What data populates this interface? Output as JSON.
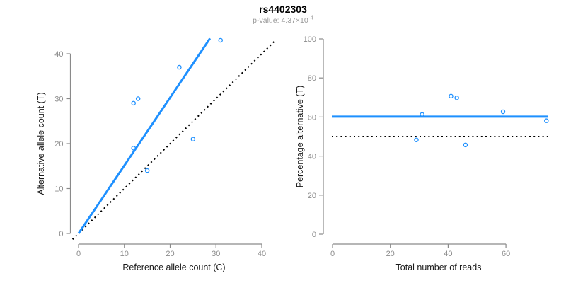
{
  "header": {
    "title": "rs4402303",
    "pvalue_prefix": "p-value: 4.37×10",
    "pvalue_exponent": "-4"
  },
  "colors": {
    "accent_blue": "#1E90FF",
    "axis_gray": "#8A8A8A",
    "tick_text_gray": "#8C8C8C",
    "axis_title_color": "#1A1A1A",
    "reference_black": "#000000",
    "subtitle_gray": "#999999"
  },
  "chart_data": [
    {
      "type": "scatter",
      "panel": "left",
      "xlabel": "Reference allele count (C)",
      "ylabel": "Alternative allele count (T)",
      "xlim": [
        0,
        40
      ],
      "ylim": [
        0,
        40
      ],
      "grid": false,
      "legend": "none",
      "xticks": [
        0,
        10,
        20,
        30,
        40
      ],
      "yticks": [
        0,
        10,
        20,
        30,
        40
      ],
      "points": [
        {
          "x": 12,
          "y": 29
        },
        {
          "x": 13,
          "y": 30
        },
        {
          "x": 12,
          "y": 19
        },
        {
          "x": 15,
          "y": 14
        },
        {
          "x": 22,
          "y": 37
        },
        {
          "x": 25,
          "y": 21
        },
        {
          "x": 31,
          "y": 43
        }
      ],
      "fit_line": {
        "style": "solid",
        "color_key": "accent_blue",
        "slope": 1.513,
        "intercept": 0
      },
      "reference_line": {
        "style": "dotted",
        "color_key": "reference_black",
        "slope": 1,
        "intercept": 0
      }
    },
    {
      "type": "scatter",
      "panel": "right",
      "xlabel": "Total number of reads",
      "ylabel": "Percentage alternative (T)",
      "xlim": [
        0,
        75
      ],
      "ylim": [
        0,
        100
      ],
      "grid": false,
      "legend": "none",
      "xticks": [
        0,
        20,
        40,
        60
      ],
      "yticks": [
        0,
        20,
        40,
        60,
        80,
        100
      ],
      "points": [
        {
          "x": 41,
          "y": 70.7
        },
        {
          "x": 43,
          "y": 69.8
        },
        {
          "x": 31,
          "y": 61.3
        },
        {
          "x": 29,
          "y": 48.3
        },
        {
          "x": 59,
          "y": 62.7
        },
        {
          "x": 46,
          "y": 45.7
        },
        {
          "x": 74,
          "y": 58.1
        }
      ],
      "fit_line": {
        "style": "solid",
        "color_key": "accent_blue",
        "y": 60.2
      },
      "reference_line": {
        "style": "dotted",
        "color_key": "reference_black",
        "y": 50
      }
    }
  ]
}
